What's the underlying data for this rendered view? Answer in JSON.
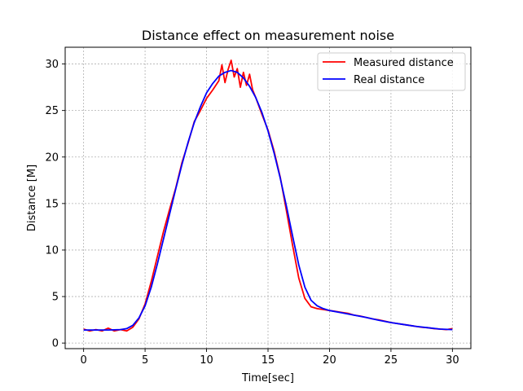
{
  "chart_data": {
    "type": "line",
    "title": "Distance effect on measurement noise",
    "xlabel": "Time[sec]",
    "ylabel": "Distance [M]",
    "xlim": [
      -1.5,
      31.5
    ],
    "ylim": [
      -0.6,
      31.8
    ],
    "xticks": [
      0,
      5,
      10,
      15,
      20,
      25,
      30
    ],
    "yticks": [
      0,
      5,
      10,
      15,
      20,
      25,
      30
    ],
    "grid": true,
    "legend_position": "top-right",
    "series": [
      {
        "name": "Measured distance",
        "color": "#ff0000",
        "x": [
          0,
          0.5,
          1,
          1.5,
          2,
          2.5,
          3,
          3.5,
          4,
          4.5,
          5,
          5.5,
          6,
          6.5,
          7,
          7.5,
          8,
          8.5,
          9,
          9.5,
          10,
          10.5,
          11,
          11.25,
          11.5,
          11.75,
          12,
          12.25,
          12.5,
          12.75,
          13,
          13.25,
          13.5,
          13.75,
          14,
          14.5,
          15,
          15.5,
          16,
          16.5,
          17,
          17.5,
          18,
          18.5,
          19,
          19.5,
          20,
          20.5,
          21,
          21.5,
          22,
          22.5,
          23,
          23.5,
          24,
          24.5,
          25,
          25.5,
          26,
          26.5,
          27,
          27.5,
          28,
          28.5,
          29,
          29.5,
          30
        ],
        "y": [
          1.5,
          1.3,
          1.45,
          1.3,
          1.6,
          1.3,
          1.45,
          1.3,
          1.7,
          2.6,
          4.2,
          6.6,
          9.3,
          12.0,
          14.4,
          16.7,
          19.4,
          21.5,
          23.8,
          25.0,
          26.3,
          27.2,
          28.2,
          29.9,
          28.0,
          29.4,
          30.4,
          28.6,
          29.5,
          27.5,
          29.1,
          27.7,
          28.9,
          27.2,
          26.4,
          24.6,
          22.9,
          20.6,
          17.8,
          14.2,
          10.5,
          7.0,
          4.8,
          3.9,
          3.7,
          3.6,
          3.5,
          3.4,
          3.3,
          3.2,
          3.0,
          2.9,
          2.75,
          2.6,
          2.5,
          2.35,
          2.2,
          2.1,
          2.0,
          1.9,
          1.8,
          1.7,
          1.65,
          1.55,
          1.5,
          1.45,
          1.55
        ]
      },
      {
        "name": "Real distance",
        "color": "#0000ff",
        "x": [
          0,
          1,
          2,
          3,
          3.5,
          4,
          4.5,
          5,
          5.5,
          6,
          6.5,
          7,
          7.5,
          8,
          8.5,
          9,
          9.5,
          10,
          10.5,
          11,
          11.5,
          12,
          12.5,
          13,
          13.5,
          14,
          14.5,
          15,
          15.5,
          16,
          16.5,
          17,
          17.5,
          18,
          18.5,
          19,
          19.5,
          20,
          21,
          22,
          23,
          24,
          25,
          26,
          27,
          28,
          29,
          30
        ],
        "y": [
          1.4,
          1.4,
          1.4,
          1.45,
          1.55,
          1.9,
          2.7,
          4.0,
          6.0,
          8.5,
          11.2,
          13.9,
          16.6,
          19.2,
          21.6,
          23.7,
          25.4,
          26.9,
          27.9,
          28.7,
          29.1,
          29.3,
          29.1,
          28.5,
          27.6,
          26.4,
          24.8,
          22.8,
          20.4,
          17.7,
          14.7,
          11.5,
          8.4,
          6.0,
          4.6,
          4.0,
          3.7,
          3.5,
          3.25,
          3.0,
          2.75,
          2.45,
          2.2,
          2.0,
          1.8,
          1.65,
          1.5,
          1.45
        ]
      }
    ]
  }
}
